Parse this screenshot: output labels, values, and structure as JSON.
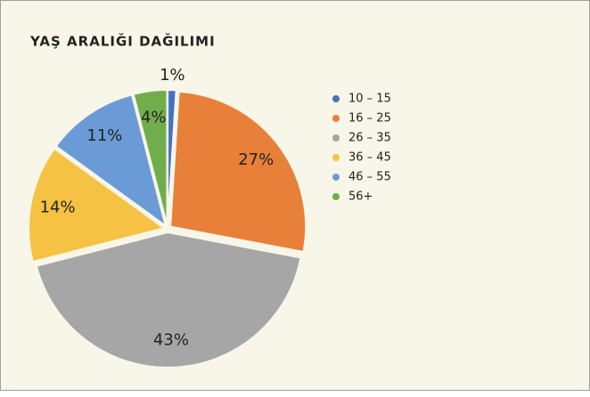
{
  "chart_data": {
    "type": "pie",
    "title": "YAŞ ARALIĞI DAĞILIMI",
    "categories": [
      "10 – 15",
      "16 – 25",
      "26 – 35",
      "36 – 45",
      "46 – 55",
      "56+"
    ],
    "values": [
      1,
      27,
      43,
      14,
      11,
      4
    ],
    "value_labels": [
      "1%",
      "27%",
      "43%",
      "14%",
      "11%",
      "4%"
    ],
    "colors": [
      "#4472c4",
      "#e8803a",
      "#a6a6a6",
      "#f6c243",
      "#6b9bd6",
      "#72ad4c"
    ],
    "legend": "right"
  }
}
